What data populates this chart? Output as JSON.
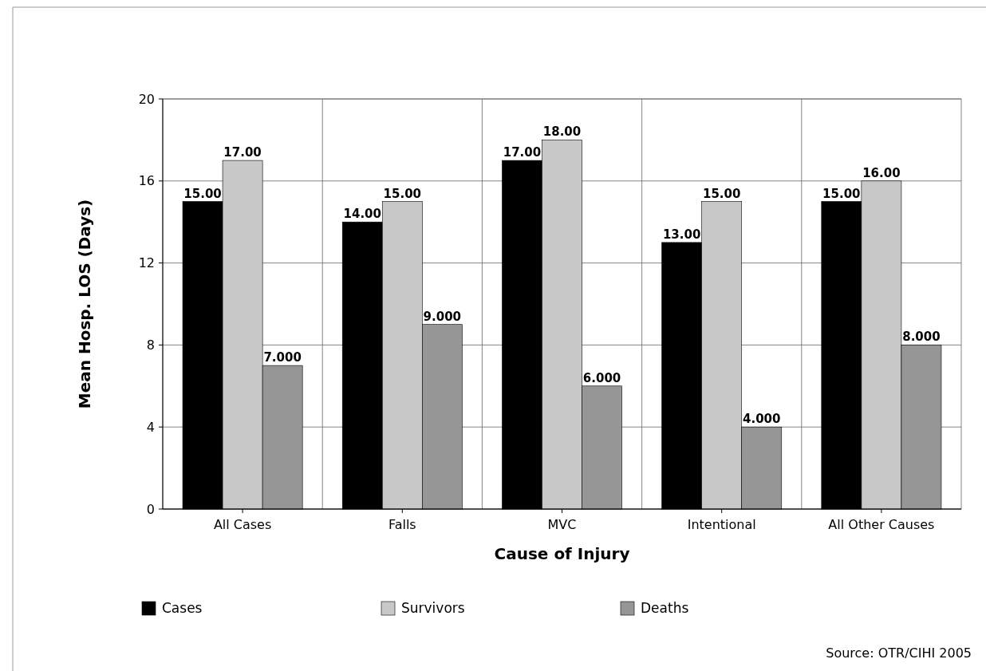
{
  "chart_data": {
    "type": "bar",
    "xlabel": "Cause of Injury",
    "ylabel": "Mean Hosp. LOS (Days)",
    "categories": [
      "All Cases",
      "Falls",
      "MVC",
      "Intentional",
      "All Other Causes"
    ],
    "series": [
      {
        "name": "Cases",
        "color": "#000000",
        "values": [
          15,
          14,
          17,
          13,
          15
        ],
        "value_labels": [
          "15.00",
          "14.00",
          "17.00",
          "13.00",
          "15.00"
        ]
      },
      {
        "name": "Survivors",
        "color": "#c8c8c8",
        "values": [
          17,
          15,
          18,
          15,
          16
        ],
        "value_labels": [
          "17.00",
          "15.00",
          "18.00",
          "15.00",
          "16.00"
        ]
      },
      {
        "name": "Deaths",
        "color": "#969696",
        "values": [
          7,
          9,
          6,
          4,
          8
        ],
        "value_labels": [
          "7.000",
          "9.000",
          "6.000",
          "4.000",
          "8.000"
        ]
      }
    ],
    "ylim": [
      0,
      20
    ],
    "yticks": [
      0,
      4,
      8,
      12,
      16,
      20
    ],
    "grid": true,
    "legend": "bottom",
    "annotations": [
      "Source: OTR/CIHI 2005"
    ]
  }
}
